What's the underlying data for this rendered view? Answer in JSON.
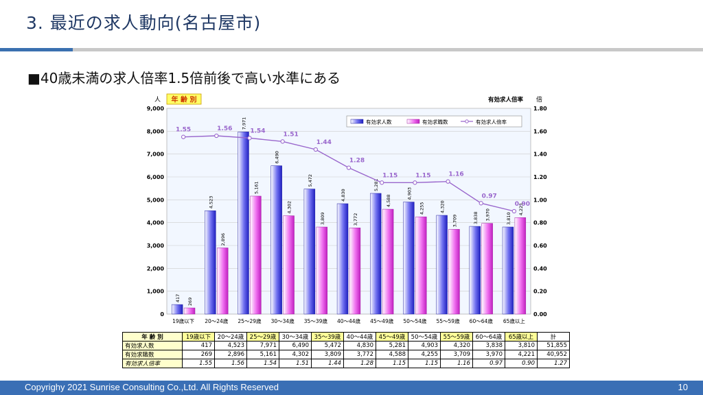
{
  "slide": {
    "title": "3. 最近の求人動向(名古屋市)",
    "bullet": "■40歳未満の求人倍率1.5倍前後で高い水準にある",
    "footer": "Copyrighy 2021 Sunrise Consulting Co.,Ltd. All Rights Reserved",
    "page_number": "10"
  },
  "chart_data": {
    "type": "bar",
    "tag": "年 齢 別",
    "y_left_unit": "人",
    "y_right_title": "有効求人倍率",
    "y_right_unit": "倍",
    "categories": [
      "19歳以下",
      "20～24歳",
      "25～29歳",
      "30～34歳",
      "35～39歳",
      "40～44歳",
      "45～49歳",
      "50～54歳",
      "55～59歳",
      "60～64歳",
      "65歳以上"
    ],
    "series": [
      {
        "name": "有効求人数",
        "axis": "left",
        "color": "#4040e0",
        "values": [
          417,
          4523,
          7971,
          6490,
          5472,
          4830,
          5281,
          4903,
          4320,
          3838,
          3810
        ],
        "labels": [
          "417",
          "4,523",
          "7,971",
          "6,490",
          "5,472",
          "4,830",
          "5,281",
          "4,903",
          "4,320",
          "3,838",
          "3,810"
        ]
      },
      {
        "name": "有効求職数",
        "axis": "left",
        "color": "#e040e0",
        "values": [
          269,
          2896,
          5161,
          4302,
          3809,
          3772,
          4588,
          4255,
          3709,
          3970,
          4221
        ],
        "labels": [
          "269",
          "2,896",
          "5,161",
          "4,302",
          "3,809",
          "3,772",
          "4,588",
          "4,255",
          "3,709",
          "3,970",
          "4,221"
        ]
      },
      {
        "name": "有効求人倍率",
        "axis": "right",
        "type": "line",
        "color": "#9966cc",
        "values": [
          1.55,
          1.56,
          1.54,
          1.51,
          1.44,
          1.28,
          1.15,
          1.15,
          1.16,
          0.97,
          0.9
        ],
        "labels": [
          "1.55",
          "1.56",
          "1.54",
          "1.51",
          "1.44",
          "1.28",
          "1.15",
          "1.15",
          "1.16",
          "0.97",
          "0.90"
        ]
      }
    ],
    "y_left": {
      "min": 0,
      "max": 9000,
      "ticks": [
        "0",
        "1,000",
        "2,000",
        "3,000",
        "4,000",
        "5,000",
        "6,000",
        "7,000",
        "8,000",
        "9,000"
      ]
    },
    "y_right": {
      "min": 0,
      "max": 1.8,
      "ticks": [
        "0.00",
        "0.20",
        "0.40",
        "0.60",
        "0.80",
        "1.00",
        "1.20",
        "1.40",
        "1.60",
        "1.80"
      ]
    },
    "legend_position": "top-right",
    "grid": true
  },
  "table": {
    "header_label": "年 齢 別",
    "columns": [
      "19歳以下",
      "20～24歳",
      "25～29歳",
      "30～34歳",
      "35～39歳",
      "40～44歳",
      "45～49歳",
      "50～54歳",
      "55～59歳",
      "60～64歳",
      "65歳以上",
      "計"
    ],
    "rows": [
      {
        "label": "有効求人数",
        "cells": [
          "417",
          "4,523",
          "7,971",
          "6,490",
          "5,472",
          "4,830",
          "5,281",
          "4,903",
          "4,320",
          "3,838",
          "3,810",
          "51,855"
        ]
      },
      {
        "label": "有効求職数",
        "cells": [
          "269",
          "2,896",
          "5,161",
          "4,302",
          "3,809",
          "3,772",
          "4,588",
          "4,255",
          "3,709",
          "3,970",
          "4,221",
          "40,952"
        ]
      },
      {
        "label": "有効求人倍率",
        "cells": [
          "1.55",
          "1.56",
          "1.54",
          "1.51",
          "1.44",
          "1.28",
          "1.15",
          "1.15",
          "1.16",
          "0.97",
          "0.90",
          "1.27"
        ]
      }
    ]
  }
}
